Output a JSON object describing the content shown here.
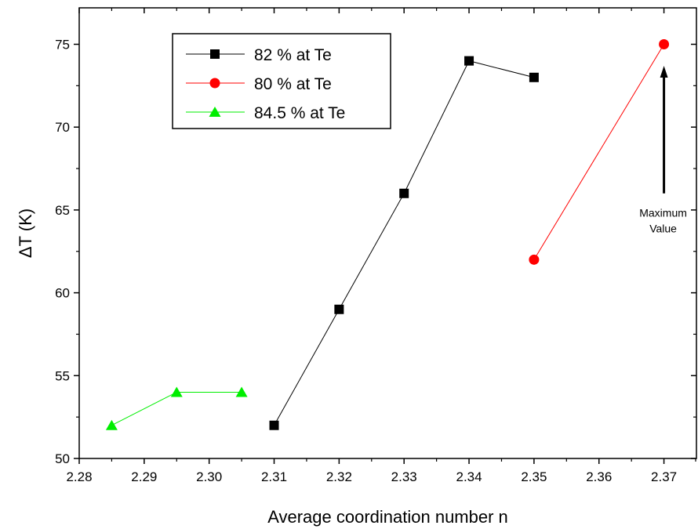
{
  "chart_data": {
    "type": "line",
    "title": "",
    "xlabel": "Average coordination number n",
    "ylabel": "ΔT (K)",
    "xlim": [
      2.28,
      2.375
    ],
    "ylim": [
      50,
      77.2
    ],
    "xticks": [
      2.28,
      2.29,
      2.3,
      2.31,
      2.32,
      2.33,
      2.34,
      2.35,
      2.36,
      2.37
    ],
    "xtick_labels": [
      "2.28",
      "2.29",
      "2.30",
      "2.31",
      "2.32",
      "2.33",
      "2.34",
      "2.35",
      "2.36",
      "2.37"
    ],
    "yticks": [
      50,
      55,
      60,
      65,
      70,
      75
    ],
    "ytick_labels": [
      "50",
      "55",
      "60",
      "65",
      "70",
      "75"
    ],
    "grid": false,
    "legend_position": "top-left",
    "series": [
      {
        "name": "82 % at Te",
        "color": "#000000",
        "marker": "square",
        "x": [
          2.31,
          2.32,
          2.33,
          2.34,
          2.35
        ],
        "y": [
          52,
          59,
          66,
          74,
          73
        ]
      },
      {
        "name": "80 % at Te",
        "color": "#ff0000",
        "marker": "circle",
        "x": [
          2.35,
          2.37
        ],
        "y": [
          62,
          75
        ]
      },
      {
        "name": "84.5 % at Te",
        "color": "#00ee00",
        "marker": "triangle",
        "x": [
          2.285,
          2.295,
          2.305
        ],
        "y": [
          52,
          54,
          54
        ]
      }
    ],
    "annotations": [
      {
        "lines": [
          "Maximum",
          "Value"
        ],
        "arrow_from": [
          2.37,
          66
        ],
        "arrow_to": [
          2.37,
          73.7
        ],
        "text_at": [
          2.37,
          64.6
        ]
      }
    ]
  }
}
